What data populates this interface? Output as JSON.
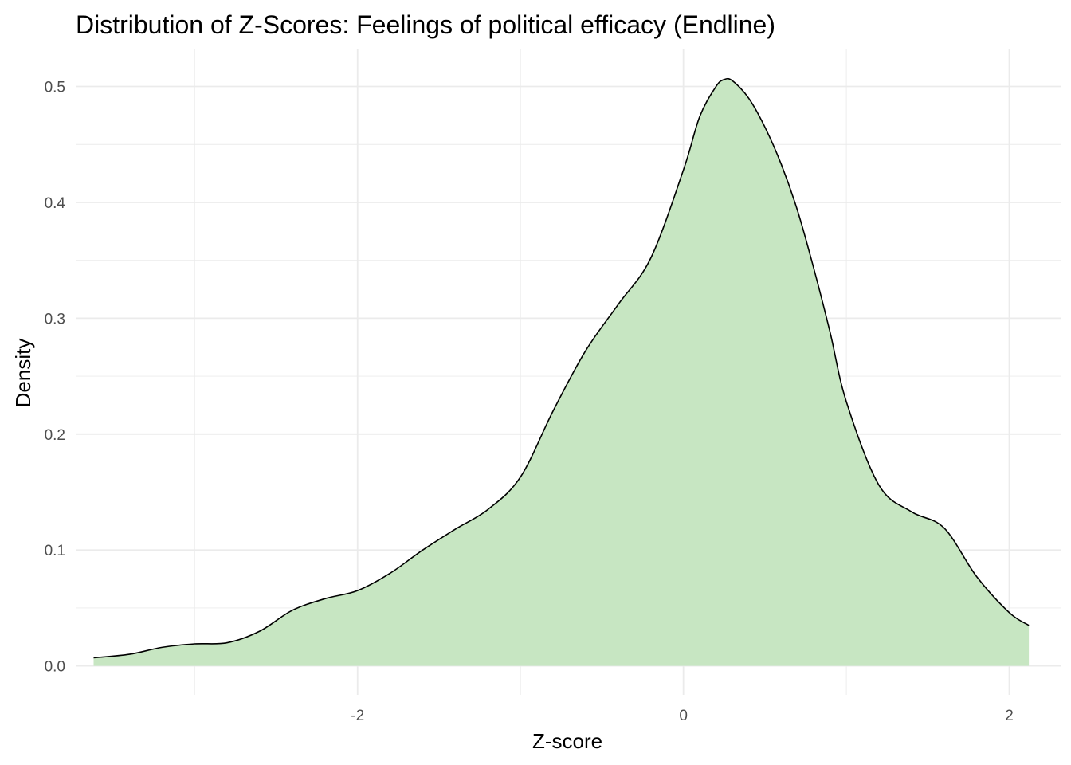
{
  "chart_data": {
    "type": "area",
    "title": "Distribution of Z-Scores: Feelings of political efficacy (Endline)",
    "xlabel": "Z-score",
    "ylabel": "Density",
    "xlim": [
      -3.73,
      2.32
    ],
    "ylim": [
      -0.025,
      0.532
    ],
    "x_ticks": [
      -2,
      0,
      2
    ],
    "x_tick_labels": [
      "-2",
      "0",
      "2"
    ],
    "x_minor_gridlines": [
      -3,
      -1,
      1
    ],
    "y_ticks": [
      0.0,
      0.1,
      0.2,
      0.3,
      0.4,
      0.5
    ],
    "y_tick_labels": [
      "0.0",
      "0.1",
      "0.2",
      "0.3",
      "0.4",
      "0.5"
    ],
    "y_minor_gridlines": [
      0.05,
      0.15,
      0.25,
      0.35,
      0.45
    ],
    "grid": true,
    "legend": "none",
    "fill_color": "#c7e6c2",
    "line_color": "#000000",
    "grid_color": "#ebebeb",
    "series": [
      {
        "x": [
          -3.62,
          -3.4,
          -3.2,
          -3.0,
          -2.8,
          -2.6,
          -2.4,
          -2.2,
          -2.0,
          -1.8,
          -1.6,
          -1.4,
          -1.2,
          -1.0,
          -0.8,
          -0.6,
          -0.4,
          -0.2,
          0.0,
          0.1,
          0.2,
          0.25,
          0.3,
          0.4,
          0.5,
          0.6,
          0.7,
          0.8,
          0.9,
          1.0,
          1.2,
          1.4,
          1.6,
          1.8,
          2.0,
          2.12
        ],
        "y": [
          0.007,
          0.01,
          0.016,
          0.019,
          0.02,
          0.03,
          0.048,
          0.058,
          0.065,
          0.08,
          0.1,
          0.118,
          0.135,
          0.163,
          0.22,
          0.272,
          0.312,
          0.352,
          0.428,
          0.474,
          0.5,
          0.506,
          0.505,
          0.49,
          0.465,
          0.433,
          0.393,
          0.343,
          0.288,
          0.228,
          0.156,
          0.133,
          0.119,
          0.077,
          0.046,
          0.035
        ]
      }
    ]
  }
}
